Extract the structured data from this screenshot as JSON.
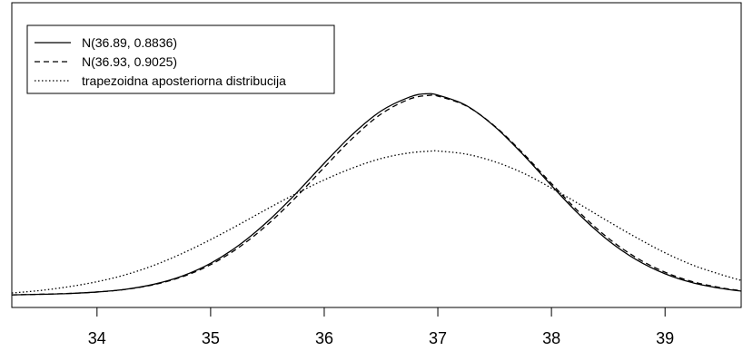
{
  "chart_data": {
    "type": "line",
    "title": "",
    "xlabel": "",
    "ylabel": "",
    "xlim": [
      33.25,
      39.67
    ],
    "ylim": [
      -0.02,
      0.465
    ],
    "x_ticks": [
      34,
      35,
      36,
      37,
      38,
      39
    ],
    "x_tick_labels": [
      "34",
      "35",
      "36",
      "37",
      "38",
      "39"
    ],
    "y_axis_shown": false,
    "grid": false,
    "legend": {
      "position": "top-left",
      "entries": [
        {
          "label": "N(36.89, 0.8836)",
          "line_style": "solid"
        },
        {
          "label": "N(36.93, 0.9025)",
          "line_style": "dashed"
        },
        {
          "label": "trapezoidna aposteriorna distribucija",
          "line_style": "dotted"
        }
      ]
    },
    "series": [
      {
        "name": "N(36.89, 0.8836)",
        "line_style": "solid",
        "color": "#000000",
        "x": [
          33.25,
          33.5,
          33.75,
          34.0,
          34.25,
          34.5,
          34.75,
          35.0,
          35.25,
          35.5,
          35.75,
          36.0,
          36.25,
          36.5,
          36.75,
          36.89,
          37.0,
          37.25,
          37.5,
          37.75,
          38.0,
          38.25,
          38.5,
          38.75,
          39.0,
          39.25,
          39.5,
          39.67
        ],
        "y": [
          0.0,
          0.0009,
          0.0022,
          0.0046,
          0.0089,
          0.0169,
          0.03,
          0.0503,
          0.0792,
          0.1166,
          0.1611,
          0.2095,
          0.2557,
          0.2927,
          0.3148,
          0.32,
          0.3179,
          0.3015,
          0.2679,
          0.2234,
          0.1741,
          0.1269,
          0.0867,
          0.0557,
          0.0336,
          0.019,
          0.0101,
          0.006
        ]
      },
      {
        "name": "N(36.93, 0.9025)",
        "line_style": "dashed",
        "color": "#000000",
        "x": [
          33.25,
          33.5,
          33.75,
          34.0,
          34.25,
          34.5,
          34.75,
          35.0,
          35.25,
          35.5,
          35.75,
          36.0,
          36.25,
          36.5,
          36.75,
          36.93,
          37.0,
          37.25,
          37.5,
          37.75,
          38.0,
          38.25,
          38.5,
          38.75,
          39.0,
          39.25,
          39.5,
          39.67
        ],
        "y": [
          0.0,
          0.001,
          0.0023,
          0.0046,
          0.0087,
          0.0163,
          0.0288,
          0.0481,
          0.0758,
          0.1118,
          0.1552,
          0.203,
          0.2495,
          0.2878,
          0.3116,
          0.3177,
          0.3164,
          0.3007,
          0.2687,
          0.2254,
          0.1772,
          0.1306,
          0.0903,
          0.0589,
          0.0361,
          0.0207,
          0.0112,
          0.0067
        ]
      },
      {
        "name": "trapezoidna aposteriorna distribucija",
        "line_style": "dotted",
        "color": "#000000",
        "x": [
          33.25,
          33.5,
          33.75,
          34.0,
          34.25,
          34.5,
          34.75,
          35.0,
          35.25,
          35.5,
          35.75,
          36.0,
          36.25,
          36.5,
          36.75,
          36.95,
          37.0,
          37.25,
          37.5,
          37.75,
          38.0,
          38.25,
          38.5,
          38.75,
          39.0,
          39.25,
          39.5,
          39.67
        ],
        "y": [
          0.003,
          0.007,
          0.013,
          0.021,
          0.032,
          0.047,
          0.066,
          0.088,
          0.112,
          0.137,
          0.161,
          0.183,
          0.202,
          0.217,
          0.226,
          0.229,
          0.229,
          0.224,
          0.212,
          0.194,
          0.17,
          0.144,
          0.117,
          0.091,
          0.067,
          0.047,
          0.032,
          0.023
        ]
      }
    ]
  }
}
